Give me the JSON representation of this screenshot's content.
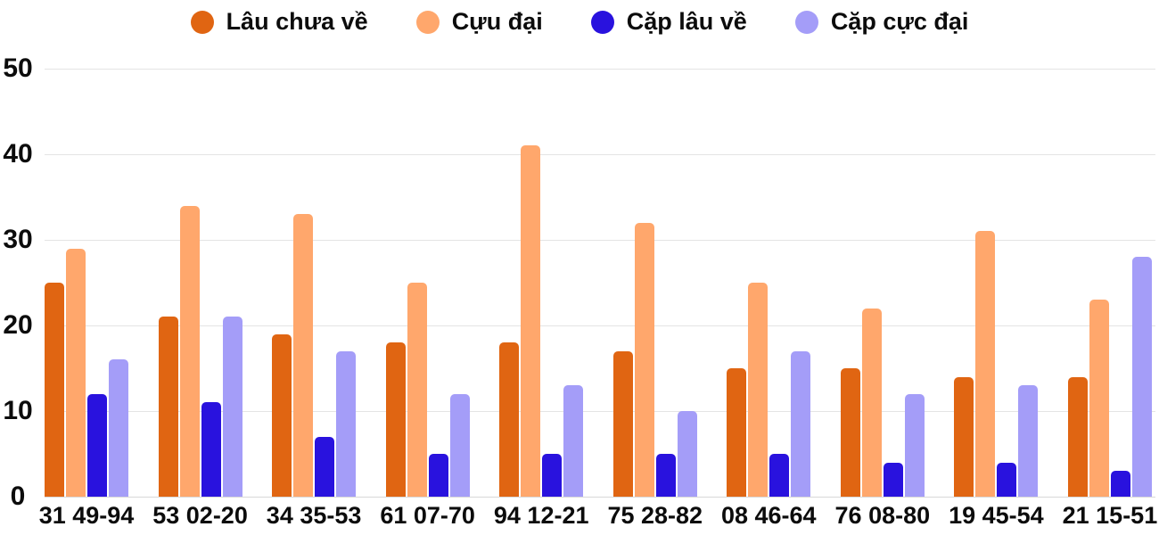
{
  "chart_data": {
    "type": "bar",
    "title": "",
    "xlabel": "",
    "ylabel": "",
    "categories": [
      "31 49-94",
      "53 02-20",
      "34 35-53",
      "61 07-70",
      "94 12-21",
      "75 28-82",
      "08 46-64",
      "76 08-80",
      "19 45-54",
      "21 15-51"
    ],
    "series": [
      {
        "name": "Lâu chưa về",
        "color": "#e06512",
        "values": [
          25,
          21,
          19,
          18,
          18,
          17,
          15,
          15,
          14,
          14
        ]
      },
      {
        "name": "Cựu đại",
        "color": "#ffa76c",
        "values": [
          29,
          34,
          33,
          25,
          41,
          32,
          25,
          22,
          31,
          23
        ]
      },
      {
        "name": "Cặp lâu về",
        "color": "#2912de",
        "values": [
          12,
          11,
          7,
          5,
          5,
          5,
          5,
          4,
          4,
          3
        ]
      },
      {
        "name": "Cặp cực đại",
        "color": "#a49df8",
        "values": [
          16,
          21,
          17,
          12,
          13,
          10,
          17,
          12,
          13,
          28
        ]
      }
    ],
    "ylim": [
      0,
      50
    ],
    "yticks": [
      0,
      10,
      20,
      30,
      40,
      50
    ],
    "grid": true,
    "legend_position": "top"
  },
  "style": {
    "background": "#ffffff",
    "grid_color": "#e4e4e4",
    "baseline_color": "#d8d8d8",
    "text_color": "#0c0c0c"
  }
}
